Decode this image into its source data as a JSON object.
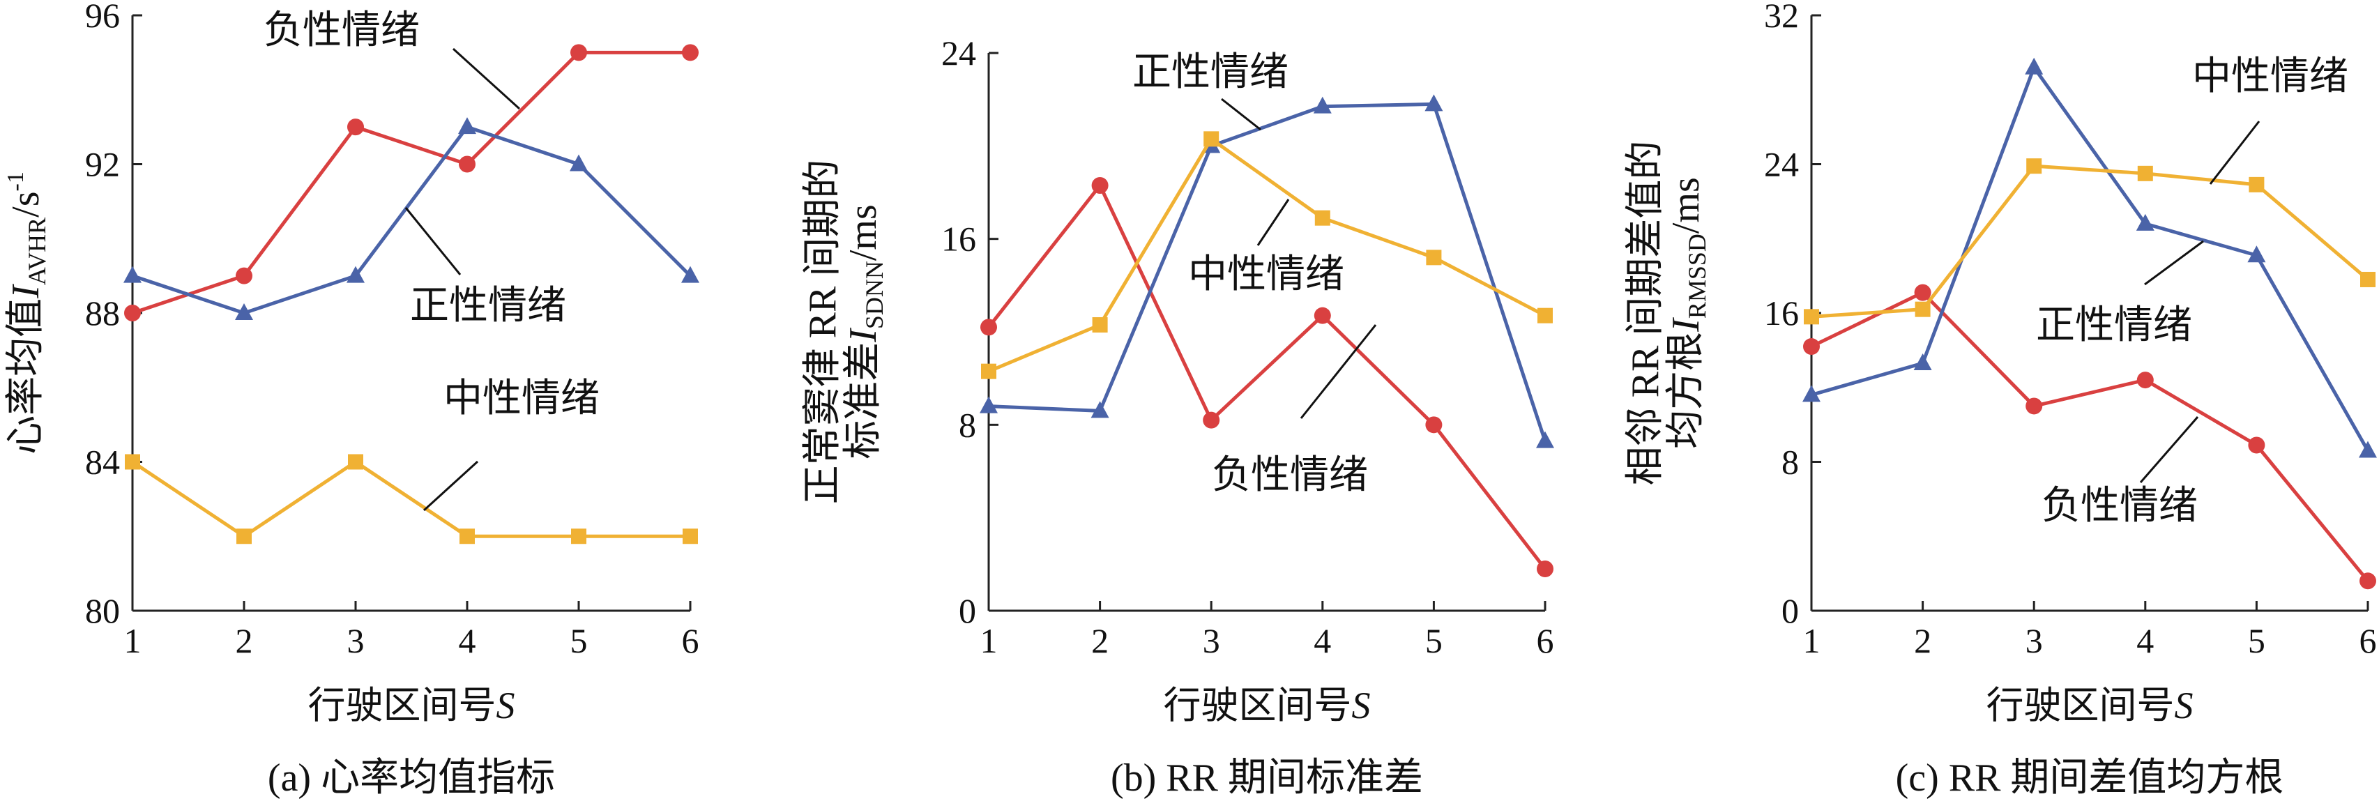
{
  "chart_data": [
    {
      "type": "line",
      "caption": "(a) 心率均值指标",
      "xlabel": "行驶区间号",
      "xlabel_var": "S",
      "ylabel_main": "心率均值",
      "ylabel_var": "I",
      "ylabel_sub": "AVHR",
      "ylabel_unit": "/s",
      "ylabel_sup": "-1",
      "x": [
        1,
        2,
        3,
        4,
        5,
        6
      ],
      "xlim": [
        1,
        6
      ],
      "ylim": [
        80,
        96
      ],
      "yticks": [
        80,
        84,
        88,
        92,
        96
      ],
      "series": [
        {
          "name": "负性情绪",
          "color": "#d94040",
          "marker": "circle",
          "values": [
            88,
            89,
            93,
            92,
            95,
            95
          ]
        },
        {
          "name": "正性情绪",
          "color": "#4a63a8",
          "marker": "triangle",
          "values": [
            89,
            88,
            89,
            93,
            92,
            89
          ]
        },
        {
          "name": "中性情绪",
          "color": "#f0b133",
          "marker": "square",
          "values": [
            84,
            82,
            84,
            82,
            82,
            82
          ]
        }
      ]
    },
    {
      "type": "line",
      "caption": "(b) RR 期间标准差",
      "xlabel": "行驶区间号",
      "xlabel_var": "S",
      "ylabel_line1": "正常窦律 RR 间期的",
      "ylabel_main": "标准差",
      "ylabel_var": "I",
      "ylabel_sub": "SDNN",
      "ylabel_unit": "/ms",
      "x": [
        1,
        2,
        3,
        4,
        5,
        6
      ],
      "xlim": [
        1,
        6
      ],
      "ylim": [
        0,
        24
      ],
      "yticks": [
        0,
        8,
        16,
        24
      ],
      "series": [
        {
          "name": "负性情绪",
          "color": "#d94040",
          "marker": "circle",
          "values": [
            12.2,
            18.3,
            8.2,
            12.7,
            8,
            1.8
          ]
        },
        {
          "name": "正性情绪",
          "color": "#4a63a8",
          "marker": "triangle",
          "values": [
            8.8,
            8.6,
            20,
            21.7,
            21.8,
            7.3
          ]
        },
        {
          "name": "中性情绪",
          "color": "#f0b133",
          "marker": "square",
          "values": [
            10.3,
            12.3,
            20.3,
            16.9,
            15.2,
            12.7
          ]
        }
      ]
    },
    {
      "type": "line",
      "caption": "(c) RR 期间差值均方根",
      "xlabel": "行驶区间号",
      "xlabel_var": "S",
      "ylabel_line1": "相邻 RR 间期差值的",
      "ylabel_main": "均方根",
      "ylabel_var": "I",
      "ylabel_sub": "RMSSD",
      "ylabel_unit": "/ms",
      "x": [
        1,
        2,
        3,
        4,
        5,
        6
      ],
      "xlim": [
        1,
        6
      ],
      "ylim": [
        0,
        32
      ],
      "yticks": [
        0,
        8,
        16,
        24,
        32
      ],
      "series": [
        {
          "name": "负性情绪",
          "color": "#d94040",
          "marker": "circle",
          "values": [
            14.2,
            17.1,
            11,
            12.4,
            8.9,
            1.6
          ]
        },
        {
          "name": "正性情绪",
          "color": "#4a63a8",
          "marker": "triangle",
          "values": [
            11.6,
            13.3,
            29.2,
            20.8,
            19.1,
            8.6
          ]
        },
        {
          "name": "中性情绪",
          "color": "#f0b133",
          "marker": "square",
          "values": [
            15.8,
            16.2,
            23.9,
            23.5,
            22.9,
            17.8
          ]
        }
      ]
    }
  ]
}
